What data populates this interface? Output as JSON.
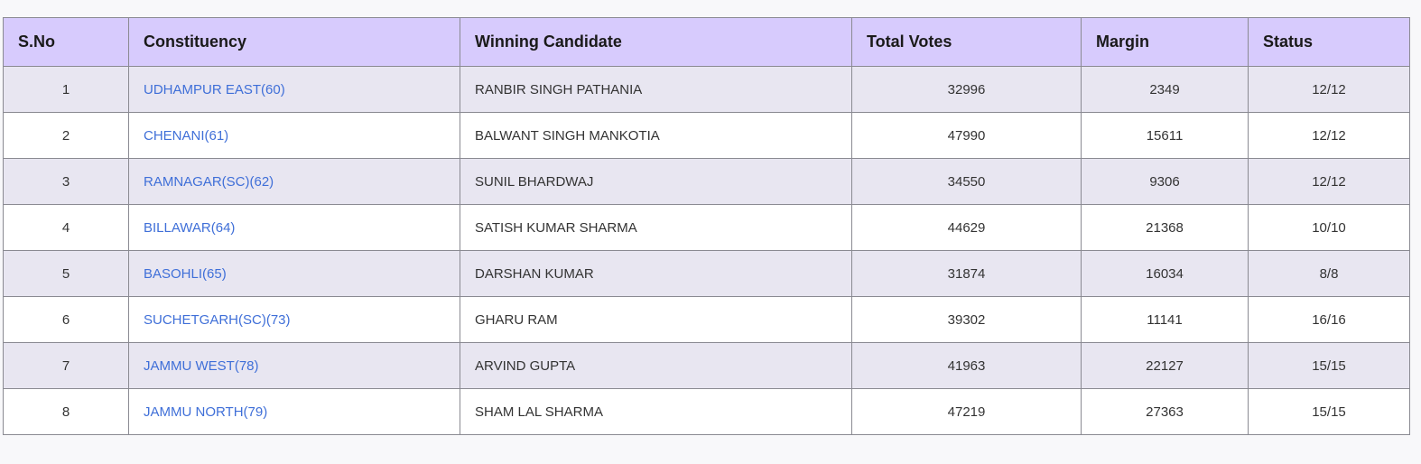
{
  "table": {
    "headers": [
      "S.No",
      "Constituency",
      "Winning Candidate",
      "Total Votes",
      "Margin",
      "Status"
    ],
    "rows": [
      {
        "sno": "1",
        "constituency": "UDHAMPUR EAST(60)",
        "candidate": "RANBIR SINGH PATHANIA",
        "votes": "32996",
        "margin": "2349",
        "status": "12/12"
      },
      {
        "sno": "2",
        "constituency": "CHENANI(61)",
        "candidate": "BALWANT SINGH MANKOTIA",
        "votes": "47990",
        "margin": "15611",
        "status": "12/12"
      },
      {
        "sno": "3",
        "constituency": "RAMNAGAR(SC)(62)",
        "candidate": "SUNIL BHARDWAJ",
        "votes": "34550",
        "margin": "9306",
        "status": "12/12"
      },
      {
        "sno": "4",
        "constituency": "BILLAWAR(64)",
        "candidate": "SATISH KUMAR SHARMA",
        "votes": "44629",
        "margin": "21368",
        "status": "10/10"
      },
      {
        "sno": "5",
        "constituency": "BASOHLI(65)",
        "candidate": "DARSHAN KUMAR",
        "votes": "31874",
        "margin": "16034",
        "status": "8/8"
      },
      {
        "sno": "6",
        "constituency": "SUCHETGARH(SC)(73)",
        "candidate": "GHARU RAM",
        "votes": "39302",
        "margin": "11141",
        "status": "16/16"
      },
      {
        "sno": "7",
        "constituency": "JAMMU WEST(78)",
        "candidate": "ARVIND GUPTA",
        "votes": "41963",
        "margin": "22127",
        "status": "15/15"
      },
      {
        "sno": "8",
        "constituency": "JAMMU NORTH(79)",
        "candidate": "SHAM LAL SHARMA",
        "votes": "47219",
        "margin": "27363",
        "status": "15/15"
      }
    ]
  },
  "colors": {
    "header_bg": "#d7cbfd",
    "row_alt_bg": "#e8e6f1",
    "link": "#3f6fd8"
  }
}
